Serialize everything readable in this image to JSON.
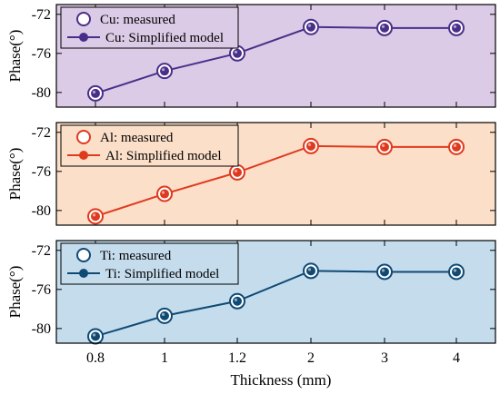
{
  "chart_data": [
    {
      "type": "line",
      "background": "#dccbe6",
      "color": "#4a2f8a",
      "categories": [
        "0.8",
        "1",
        "1.2",
        "2",
        "3",
        "4"
      ],
      "series": [
        {
          "name": "Cu: measured",
          "marker": "hollow-circle",
          "values": [
            -80.1,
            -77.8,
            -76.0,
            -73.3,
            -73.4,
            -73.4
          ]
        },
        {
          "name": "Cu: Simplified model",
          "marker": "filled-circle-line",
          "values": [
            -80.1,
            -77.8,
            -76.0,
            -73.3,
            -73.4,
            -73.4
          ]
        }
      ],
      "ylabel": "Phase(°)",
      "ylim": [
        -81.5,
        -71.0
      ],
      "yticks": [
        "-72",
        "-76",
        "-80"
      ],
      "ytick_values": [
        -72,
        -76,
        -80
      ],
      "legend": "top-left",
      "grid": false
    },
    {
      "type": "line",
      "background": "#fbdfc9",
      "color": "#e03a1e",
      "categories": [
        "0.8",
        "1",
        "1.2",
        "2",
        "3",
        "4"
      ],
      "series": [
        {
          "name": "Al: measured",
          "marker": "hollow-circle",
          "values": [
            -80.6,
            -78.3,
            -76.1,
            -73.4,
            -73.5,
            -73.5
          ]
        },
        {
          "name": "Al: Simplified model",
          "marker": "filled-circle-line",
          "values": [
            -80.6,
            -78.3,
            -76.1,
            -73.4,
            -73.5,
            -73.5
          ]
        }
      ],
      "ylabel": "Phase(°)",
      "ylim": [
        -81.5,
        -71.0
      ],
      "yticks": [
        "-72",
        "-76",
        "-80"
      ],
      "ytick_values": [
        -72,
        -76,
        -80
      ],
      "legend": "top-left",
      "grid": false
    },
    {
      "type": "line",
      "background": "#c5dced",
      "color": "#0f4a75",
      "categories": [
        "0.8",
        "1",
        "1.2",
        "2",
        "3",
        "4"
      ],
      "series": [
        {
          "name": "Ti: measured",
          "marker": "hollow-circle",
          "values": [
            -80.8,
            -78.7,
            -77.2,
            -74.1,
            -74.2,
            -74.2
          ]
        },
        {
          "name": "Ti: Simplified model",
          "marker": "filled-circle-line",
          "values": [
            -80.8,
            -78.7,
            -77.2,
            -74.1,
            -74.2,
            -74.2
          ]
        }
      ],
      "ylabel": "Phase(°)",
      "ylim": [
        -81.5,
        -71.0
      ],
      "yticks": [
        "-72",
        "-76",
        "-80"
      ],
      "ytick_values": [
        -72,
        -76,
        -80
      ],
      "legend": "top-left",
      "grid": false
    }
  ],
  "xlabel": "Thickness (mm)"
}
